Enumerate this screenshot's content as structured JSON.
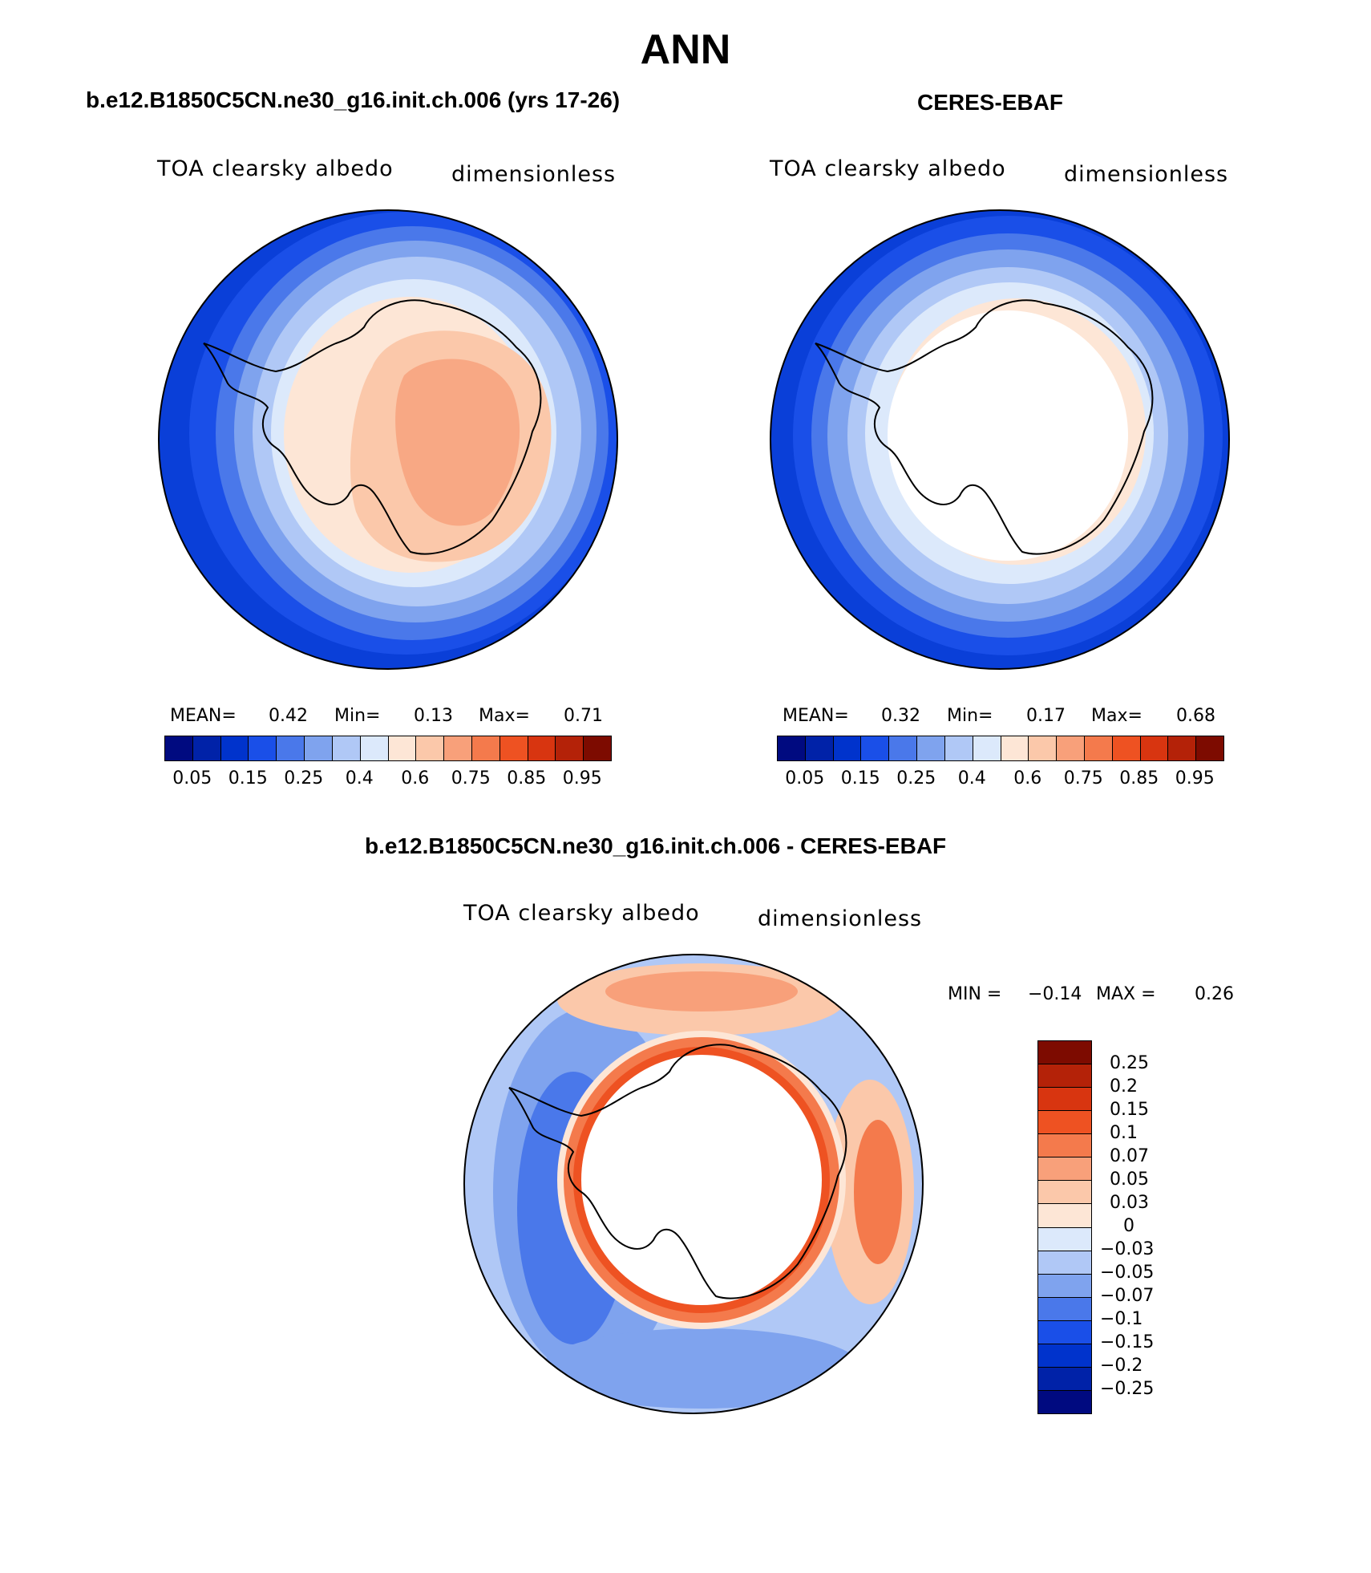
{
  "title": "ANN",
  "colors": {
    "ocean_deep": "#0a3fd8",
    "coast": "#000000"
  },
  "panels": [
    {
      "name": "model",
      "title": "b.e12.B1850C5CN.ne30_g16.init.ch.006 (yrs 17-26)",
      "field_label": "TOA clearsky albedo",
      "units_label": "dimensionless",
      "stats": {
        "mean_label": "MEAN=",
        "mean_value": "0.42",
        "min_label": "Min=",
        "min_value": "0.13",
        "max_label": "Max=",
        "max_value": "0.71"
      }
    },
    {
      "name": "obs",
      "title": "CERES-EBAF",
      "field_label": "TOA clearsky albedo",
      "units_label": "dimensionless",
      "stats": {
        "mean_label": "MEAN=",
        "mean_value": "0.32",
        "min_label": "Min=",
        "min_value": "0.17",
        "max_label": "Max=",
        "max_value": "0.68"
      }
    },
    {
      "name": "diff",
      "title": "b.e12.B1850C5CN.ne30_g16.init.ch.006 - CERES-EBAF",
      "field_label": "TOA clearsky albedo",
      "units_label": "dimensionless",
      "stats": {
        "min_label": "MIN =",
        "min_value": "−0.14",
        "max_label": "MAX =",
        "max_value": "0.26"
      }
    }
  ],
  "horiz_colorbar": {
    "colors": [
      "#000a80",
      "#0022a8",
      "#0033cc",
      "#1a4fe8",
      "#4a78ea",
      "#7fa3ee",
      "#b0c8f6",
      "#dce9fb",
      "#fde6d6",
      "#fbc8aa",
      "#f8a07a",
      "#f47a4c",
      "#ee5222",
      "#d83510",
      "#b42208",
      "#7d0b00"
    ],
    "labels": [
      "0.05",
      "0.15",
      "0.25",
      "0.4",
      "0.6",
      "0.75",
      "0.85",
      "0.95"
    ]
  },
  "vert_colorbar": {
    "colors": [
      "#7d0b00",
      "#b42208",
      "#d83510",
      "#ee5222",
      "#f47a4c",
      "#f8a07a",
      "#fbc8aa",
      "#fde6d6",
      "#dce9fb",
      "#b0c8f6",
      "#7fa3ee",
      "#4a78ea",
      "#1a4fe8",
      "#0033cc",
      "#0022a8",
      "#000a80"
    ],
    "labels": [
      "0.25",
      "0.2",
      "0.15",
      "0.1",
      "0.07",
      "0.05",
      "0.03",
      "0",
      "−0.03",
      "−0.05",
      "−0.07",
      "−0.1",
      "−0.15",
      "−0.2",
      "−0.25"
    ]
  }
}
